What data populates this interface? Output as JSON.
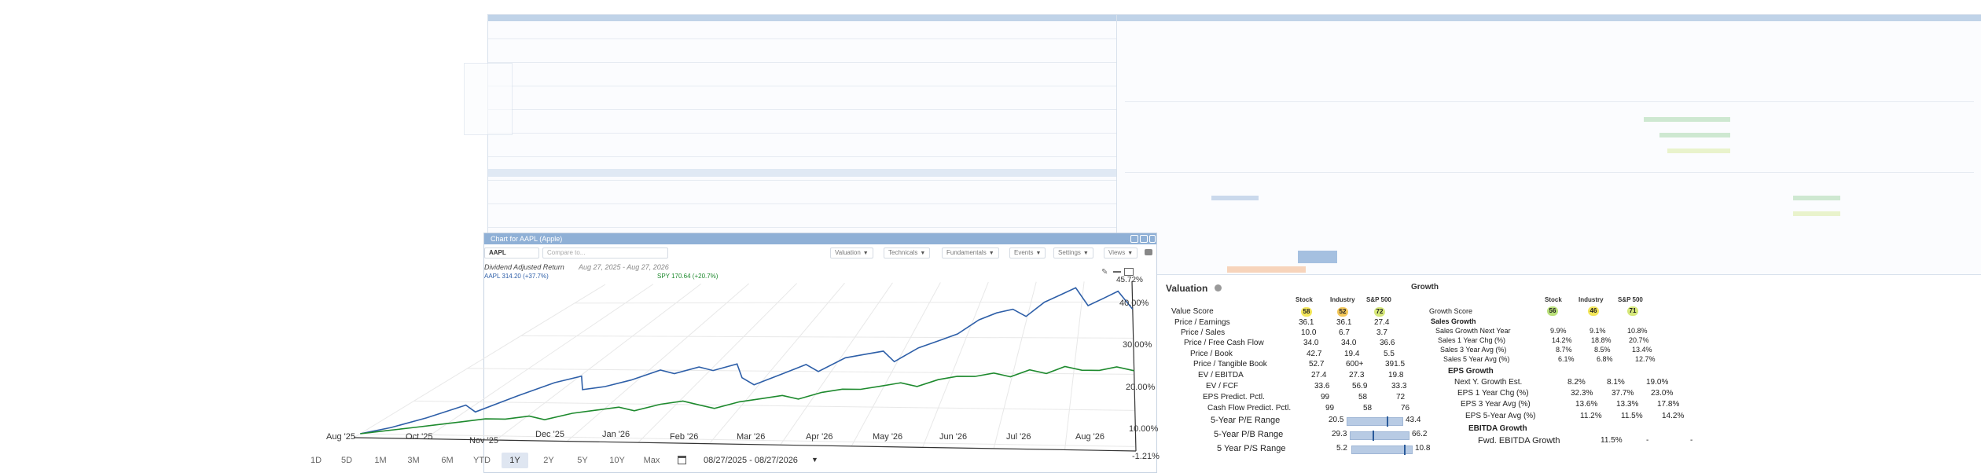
{
  "chart_panel": {
    "header_title": "Chart for AAPL (Apple)",
    "symbol_input": "AAPL",
    "compare_placeholder": "Compare to...",
    "toolbar": [
      "Valuation",
      "Technicals",
      "Fundamentals",
      "Events",
      "Settings",
      "Views"
    ],
    "chart_title": "Dividend Adjusted Return",
    "date_range_title": "Aug 27, 2025 - Aug 27, 2026",
    "legend": [
      {
        "label": "AAPL 314.20 (+37.7%)",
        "color": "#2e5fa8"
      },
      {
        "label": "SPY 170.64 (+20.7%)",
        "color": "#1e8a2e"
      }
    ],
    "range_buttons": [
      "1D",
      "5D",
      "1M",
      "3M",
      "6M",
      "YTD",
      "1Y",
      "2Y",
      "5Y",
      "10Y",
      "Max"
    ],
    "active_range": "1Y",
    "date_picker_value": "08/27/2025 - 08/27/2026"
  },
  "chart_data": {
    "type": "line",
    "title": "Dividend Adjusted Return",
    "x_labels": [
      "Aug '25",
      "Oct '25",
      "Nov '25",
      "Dec '25",
      "Jan '26",
      "Feb '26",
      "Mar '26",
      "Apr '26",
      "May '26",
      "Jun '26",
      "Jul '26",
      "Aug '26"
    ],
    "y_ticks": [
      "45.72%",
      "40.00%",
      "30.00%",
      "20.00%",
      "10.00%",
      "-1.21%"
    ],
    "ylim": [
      -1.21,
      45.72
    ],
    "series": [
      {
        "name": "AAPL",
        "color": "#2e5fa8",
        "values": [
          0,
          2,
          5,
          9,
          7,
          12,
          16,
          18,
          14,
          15,
          17,
          20,
          19,
          21,
          20,
          22,
          18,
          16,
          19,
          22,
          20,
          24,
          25,
          26,
          23,
          27,
          29,
          31,
          35,
          37,
          38,
          36,
          40,
          42,
          44,
          39,
          41,
          43,
          38
        ]
      },
      {
        "name": "SPY",
        "color": "#1e8a2e",
        "values": [
          0,
          1,
          2,
          3,
          4,
          5,
          5,
          6,
          5,
          7,
          8,
          9,
          8,
          10,
          11,
          10,
          9,
          11,
          12,
          13,
          12,
          14,
          15,
          15,
          16,
          17,
          16,
          18,
          19,
          19,
          20,
          19,
          21,
          20,
          22,
          21,
          21,
          22,
          21
        ]
      }
    ]
  },
  "valuation": {
    "title": "Valuation",
    "col_heads": [
      "Stock",
      "Industry",
      "S&P 500"
    ],
    "score_label": "Value Score",
    "scores": [
      "58",
      "52",
      "72"
    ],
    "rows": [
      {
        "label": "Price / Earnings",
        "vals": [
          "36.1",
          "36.1",
          "27.4"
        ]
      },
      {
        "label": "Price / Sales",
        "vals": [
          "10.0",
          "6.7",
          "3.7"
        ]
      },
      {
        "label": "Price / Free Cash Flow",
        "vals": [
          "34.0",
          "34.0",
          "36.6"
        ]
      },
      {
        "label": "Price / Book",
        "vals": [
          "42.7",
          "19.4",
          "5.5"
        ]
      },
      {
        "label": "Price / Tangible Book",
        "vals": [
          "52.7",
          "600+",
          "391.5"
        ]
      },
      {
        "label": "EV / EBITDA",
        "vals": [
          "27.4",
          "27.3",
          "19.8"
        ]
      },
      {
        "label": "EV / FCF",
        "vals": [
          "33.6",
          "56.9",
          "33.3"
        ]
      },
      {
        "label": "EPS Predict. Pctl.",
        "vals": [
          "99",
          "58",
          "72"
        ]
      },
      {
        "label": "Cash Flow Predict. Pctl.",
        "vals": [
          "99",
          "58",
          "76"
        ]
      }
    ],
    "ranges": [
      {
        "label": "5-Year P/E Range",
        "low": "20.5",
        "high": "43.4"
      },
      {
        "label": "5-Year P/B Range",
        "low": "29.3",
        "high": "66.2"
      },
      {
        "label": "5 Year P/S Range",
        "low": "5.2",
        "high": "10.8"
      }
    ]
  },
  "growth": {
    "title": "Growth",
    "col_heads": [
      "Stock",
      "Industry",
      "S&P 500"
    ],
    "score_label": "Growth Score",
    "scores": [
      "56",
      "46",
      "71"
    ],
    "sales_head": "Sales Growth",
    "sales_rows": [
      {
        "label": "Sales Growth Next Year",
        "vals": [
          "9.9%",
          "9.1%",
          "10.8%"
        ]
      },
      {
        "label": "Sales 1 Year Chg (%)",
        "vals": [
          "14.2%",
          "18.8%",
          "20.7%"
        ]
      },
      {
        "label": "Sales 3 Year Avg (%)",
        "vals": [
          "8.7%",
          "8.5%",
          "13.4%"
        ]
      },
      {
        "label": "Sales 5 Year Avg (%)",
        "vals": [
          "6.1%",
          "6.8%",
          "12.7%"
        ]
      }
    ],
    "eps_head": "EPS Growth",
    "eps_rows": [
      {
        "label": "Next Y. Growth Est.",
        "vals": [
          "8.2%",
          "8.1%",
          "19.0%"
        ]
      },
      {
        "label": "EPS 1 Year Chg (%)",
        "vals": [
          "32.3%",
          "37.7%",
          "23.0%"
        ]
      },
      {
        "label": "EPS 3 Year Avg (%)",
        "vals": [
          "13.6%",
          "13.3%",
          "17.8%"
        ]
      },
      {
        "label": "EPS 5-Year Avg (%)",
        "vals": [
          "11.2%",
          "11.5%",
          "14.2%"
        ]
      }
    ],
    "ebitda_head": "EBITDA Growth",
    "ebitda_rows": [
      {
        "label": "Fwd. EBITDA Growth",
        "vals": [
          "11.5%",
          "-",
          "-"
        ]
      }
    ]
  },
  "colors": {
    "accent": "#8fb0d6",
    "aapl_line": "#2e5fa8",
    "spy_line": "#1e8a2e",
    "badge_green": "#b9e07a",
    "badge_yellow": "#f3e65a"
  }
}
